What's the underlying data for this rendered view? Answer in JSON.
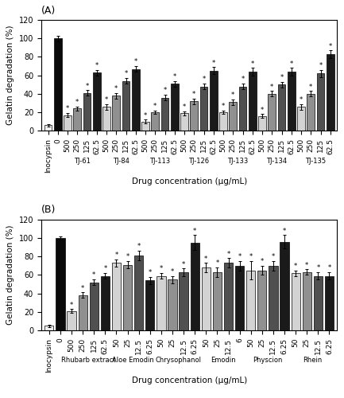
{
  "chart_data": [
    {
      "type": "bar",
      "title": "(A)",
      "xlabel": "Drug concentration (μg/mL)",
      "ylabel": "Gelatin degradation (%)",
      "ylim": [
        0,
        120
      ],
      "yticks": [
        0,
        20,
        40,
        60,
        80,
        100,
        120
      ],
      "categories": [
        "Inocypsin",
        "0",
        "500",
        "250",
        "125",
        "62.5",
        "500",
        "250",
        "125",
        "62.5",
        "500",
        "250",
        "125",
        "62.5",
        "500",
        "250",
        "125",
        "62.5",
        "500",
        "250",
        "125",
        "62.5",
        "500",
        "250",
        "125",
        "62.5",
        "500",
        "250",
        "125",
        "62.5"
      ],
      "group": [
        null,
        null,
        "TJ-61",
        "TJ-61",
        "TJ-61",
        "TJ-61",
        "TJ-84",
        "TJ-84",
        "TJ-84",
        "TJ-84",
        "TJ-113",
        "TJ-113",
        "TJ-113",
        "TJ-113",
        "TJ-126",
        "TJ-126",
        "TJ-126",
        "TJ-126",
        "TJ-133",
        "TJ-133",
        "TJ-133",
        "TJ-133",
        "TJ-134",
        "TJ-134",
        "TJ-134",
        "TJ-134",
        "TJ-135",
        "TJ-135",
        "TJ-135",
        "TJ-135"
      ],
      "values": [
        6,
        100,
        17,
        24,
        41,
        63,
        26,
        38,
        54,
        67,
        10,
        20,
        36,
        51,
        19,
        32,
        48,
        65,
        20,
        31,
        48,
        64,
        16,
        40,
        50,
        64,
        26,
        40,
        62,
        83
      ],
      "errors": [
        1.2,
        3,
        2.5,
        2,
        3,
        3,
        3,
        3,
        3,
        3,
        2,
        2,
        3,
        3,
        2,
        3,
        3,
        4,
        2,
        3,
        3,
        4,
        2,
        3,
        3,
        4,
        3,
        3,
        4,
        4
      ],
      "colors": [
        "#efefef",
        "#0a0a0a",
        "#d3d3d3",
        "#909090",
        "#505050",
        "#1a1a1a",
        "#d3d3d3",
        "#909090",
        "#505050",
        "#1a1a1a",
        "#d3d3d3",
        "#909090",
        "#505050",
        "#1a1a1a",
        "#d3d3d3",
        "#909090",
        "#505050",
        "#1a1a1a",
        "#d3d3d3",
        "#909090",
        "#505050",
        "#1a1a1a",
        "#d3d3d3",
        "#909090",
        "#505050",
        "#1a1a1a",
        "#d3d3d3",
        "#909090",
        "#505050",
        "#1a1a1a"
      ],
      "annotations": [
        null,
        null,
        "*",
        "*",
        "*",
        "*",
        "*",
        "*",
        "*",
        "*",
        "*",
        "*",
        "*",
        "*",
        "*",
        "*",
        "*",
        "*",
        "*",
        "*",
        "*",
        "*",
        "*",
        "*",
        "*",
        "*",
        "*",
        "*",
        "*",
        "*"
      ]
    },
    {
      "type": "bar",
      "title": "(B)",
      "xlabel": "Drug concentration (μg/mL)",
      "ylabel": "Gelatin degradation (%)",
      "ylim": [
        0,
        120
      ],
      "yticks": [
        0,
        20,
        40,
        60,
        80,
        100,
        120
      ],
      "categories": [
        "Inocypsin",
        "0",
        "500",
        "250",
        "125",
        "62.5",
        "50",
        "25",
        "12.5",
        "6.25",
        "50",
        "25",
        "12.5",
        "6.25",
        "50",
        "25",
        "12.5",
        "6",
        "50",
        "25",
        "12.5",
        "6.25",
        "50",
        "25",
        "12.5",
        "6.25"
      ],
      "group": [
        null,
        null,
        "Rhubarb extract",
        "Rhubarb extract",
        "Rhubarb extract",
        "Rhubarb extract",
        "Aloe Emodin",
        "Aloe Emodin",
        "Aloe Emodin",
        "Aloe Emodin",
        "Chrysophanol",
        "Chrysophanol",
        "Chrysophanol",
        "Chrysophanol",
        "Emodin",
        "Emodin",
        "Emodin",
        "Emodin",
        "Physcion",
        "Physcion",
        "Physcion",
        "Physcion",
        "Rhein",
        "Rhein",
        "Rhein",
        "Rhein"
      ],
      "values": [
        5,
        100,
        21,
        38,
        52,
        59,
        73,
        71,
        81,
        54,
        59,
        55,
        63,
        95,
        68,
        63,
        73,
        70,
        65,
        65,
        70,
        96,
        62,
        63,
        59,
        59
      ],
      "errors": [
        1.2,
        2,
        2,
        3,
        3,
        3,
        4,
        4,
        5,
        4,
        3,
        4,
        4,
        8,
        5,
        5,
        5,
        5,
        10,
        5,
        5,
        7,
        3,
        3,
        4,
        4
      ],
      "colors": [
        "#efefef",
        "#0a0a0a",
        "#d3d3d3",
        "#909090",
        "#505050",
        "#1a1a1a",
        "#d3d3d3",
        "#909090",
        "#505050",
        "#1a1a1a",
        "#d3d3d3",
        "#909090",
        "#505050",
        "#1a1a1a",
        "#d3d3d3",
        "#909090",
        "#505050",
        "#1a1a1a",
        "#d3d3d3",
        "#909090",
        "#505050",
        "#1a1a1a",
        "#d3d3d3",
        "#909090",
        "#505050",
        "#1a1a1a"
      ],
      "annotations": [
        null,
        null,
        "*",
        "*",
        "*",
        "*",
        "*",
        "*",
        "*",
        "*",
        "*",
        "*",
        "*",
        "*",
        "*",
        "*",
        "*",
        "*",
        "*",
        "*",
        "*",
        "*",
        "*",
        "*",
        "*",
        "*"
      ]
    }
  ]
}
